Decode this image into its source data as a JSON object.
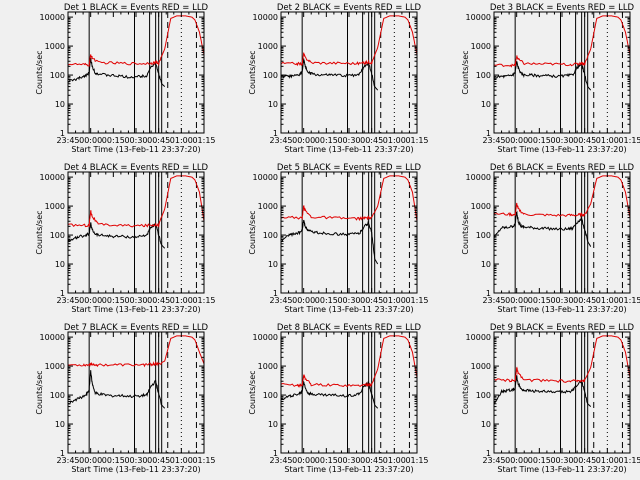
{
  "page": {
    "background": "#f0f0f0",
    "x_tick_labels": [
      "23:45",
      "00:00",
      "00:15",
      "00:30",
      "00:45",
      "01:00",
      "01:15"
    ],
    "y_tick_labels": [
      "1",
      "10",
      "100",
      "1000",
      "10000"
    ],
    "y_axis_label": "Counts/sec",
    "x_axis_label": "Start Time (13-Feb-11 23:37:20)",
    "black_color": "#000000",
    "red_color": "#e00000"
  },
  "chart_data": [
    {
      "type": "line",
      "title": "Det  1 BLACK = Events  RED = LLD",
      "xlabel": "Start Time (13-Feb-11 23:37:20)",
      "ylabel": "Counts/sec",
      "ylim": [
        1,
        15000
      ],
      "y_scale": "log",
      "series": [
        {
          "color": "#000000",
          "x": [
            0,
            5,
            8,
            12,
            14,
            15,
            16,
            18,
            20,
            25,
            30,
            35,
            42,
            48,
            52,
            55,
            58,
            60,
            62,
            64
          ],
          "y": [
            60,
            70,
            80,
            100,
            120,
            380,
            200,
            120,
            110,
            100,
            95,
            90,
            85,
            90,
            95,
            200,
            240,
            110,
            50,
            40
          ]
        },
        {
          "color": "#e00000",
          "x": [
            0,
            10,
            14,
            15,
            16,
            20,
            30,
            40,
            50,
            55,
            58,
            60,
            64,
            68,
            72,
            78,
            82,
            84,
            87,
            90
          ],
          "y": [
            240,
            230,
            220,
            500,
            400,
            270,
            260,
            250,
            250,
            260,
            270,
            250,
            800,
            9000,
            11000,
            11000,
            10000,
            8000,
            3000,
            500
          ]
        }
      ]
    },
    {
      "type": "line",
      "title": "Det  2 BLACK = Events  RED = LLD",
      "xlabel": "Start Time (13-Feb-11 23:37:20)",
      "ylabel": "Counts/sec",
      "ylim": [
        1,
        15000
      ],
      "y_scale": "log",
      "series": [
        {
          "color": "#000000",
          "x": [
            0,
            5,
            8,
            12,
            14,
            15,
            16,
            18,
            20,
            25,
            30,
            35,
            42,
            48,
            52,
            55,
            58,
            60,
            62,
            64
          ],
          "y": [
            90,
            90,
            90,
            100,
            130,
            350,
            200,
            120,
            110,
            100,
            100,
            100,
            95,
            100,
            110,
            200,
            260,
            110,
            40,
            30
          ]
        },
        {
          "color": "#e00000",
          "x": [
            0,
            10,
            14,
            15,
            16,
            20,
            30,
            40,
            50,
            55,
            58,
            60,
            64,
            68,
            72,
            78,
            82,
            84,
            87,
            90
          ],
          "y": [
            250,
            250,
            240,
            550,
            400,
            270,
            260,
            260,
            250,
            260,
            280,
            260,
            900,
            9000,
            11000,
            11000,
            10000,
            8000,
            3000,
            500
          ]
        }
      ]
    },
    {
      "type": "line",
      "title": "Det  3 BLACK = Events  RED = LLD",
      "xlabel": "Start Time (13-Feb-11 23:37:20)",
      "ylabel": "Counts/sec",
      "ylim": [
        1,
        15000
      ],
      "y_scale": "log",
      "series": [
        {
          "color": "#000000",
          "x": [
            0,
            5,
            8,
            12,
            14,
            15,
            16,
            18,
            20,
            25,
            30,
            35,
            42,
            48,
            52,
            55,
            58,
            60,
            62,
            64
          ],
          "y": [
            80,
            90,
            90,
            100,
            120,
            300,
            180,
            110,
            100,
            100,
            95,
            95,
            90,
            95,
            100,
            180,
            240,
            100,
            40,
            30
          ]
        },
        {
          "color": "#e00000",
          "x": [
            0,
            10,
            14,
            15,
            16,
            20,
            30,
            40,
            50,
            55,
            58,
            60,
            64,
            68,
            72,
            78,
            82,
            84,
            87,
            90
          ],
          "y": [
            220,
            220,
            210,
            450,
            350,
            250,
            240,
            240,
            230,
            240,
            260,
            240,
            800,
            9000,
            11000,
            11000,
            10000,
            8000,
            3000,
            500
          ]
        }
      ]
    },
    {
      "type": "line",
      "title": "Det  4 BLACK = Events  RED = LLD",
      "xlabel": "Start Time (13-Feb-11 23:37:20)",
      "ylabel": "Counts/sec",
      "ylim": [
        1,
        15000
      ],
      "y_scale": "log",
      "series": [
        {
          "color": "#000000",
          "x": [
            0,
            5,
            8,
            12,
            14,
            15,
            16,
            18,
            20,
            25,
            30,
            35,
            42,
            48,
            52,
            55,
            58,
            60,
            62,
            64
          ],
          "y": [
            60,
            80,
            90,
            100,
            110,
            250,
            150,
            110,
            100,
            95,
            90,
            90,
            85,
            90,
            100,
            180,
            230,
            100,
            45,
            35
          ]
        },
        {
          "color": "#e00000",
          "x": [
            0,
            10,
            14,
            15,
            16,
            20,
            30,
            40,
            50,
            55,
            58,
            60,
            64,
            68,
            72,
            78,
            82,
            84,
            87,
            90
          ],
          "y": [
            220,
            220,
            210,
            700,
            450,
            230,
            220,
            210,
            210,
            220,
            230,
            220,
            800,
            9000,
            11000,
            11000,
            10000,
            8000,
            3000,
            300
          ]
        }
      ]
    },
    {
      "type": "line",
      "title": "Det  5 BLACK = Events  RED = LLD",
      "xlabel": "Start Time (13-Feb-11 23:37:20)",
      "ylabel": "Counts/sec",
      "ylim": [
        1,
        15000
      ],
      "y_scale": "log",
      "series": [
        {
          "color": "#000000",
          "x": [
            0,
            5,
            8,
            12,
            14,
            15,
            16,
            18,
            20,
            25,
            30,
            35,
            42,
            48,
            52,
            55,
            58,
            60,
            62,
            64
          ],
          "y": [
            60,
            100,
            110,
            120,
            140,
            330,
            200,
            140,
            130,
            120,
            115,
            110,
            105,
            110,
            115,
            200,
            260,
            120,
            15,
            10
          ]
        },
        {
          "color": "#e00000",
          "x": [
            0,
            10,
            14,
            15,
            16,
            20,
            30,
            40,
            50,
            55,
            58,
            60,
            64,
            68,
            72,
            78,
            82,
            84,
            87,
            90
          ],
          "y": [
            420,
            400,
            380,
            1000,
            700,
            420,
            400,
            380,
            370,
            380,
            400,
            380,
            1000,
            9000,
            11000,
            11000,
            10000,
            8000,
            3000,
            300
          ]
        }
      ]
    },
    {
      "type": "line",
      "title": "Det  6 BLACK = Events  RED = LLD",
      "xlabel": "Start Time (13-Feb-11 23:37:20)",
      "ylabel": "Counts/sec",
      "ylim": [
        1,
        15000
      ],
      "y_scale": "log",
      "series": [
        {
          "color": "#000000",
          "x": [
            0,
            5,
            8,
            12,
            14,
            15,
            16,
            18,
            20,
            25,
            30,
            35,
            42,
            48,
            52,
            55,
            58,
            60,
            62,
            64
          ],
          "y": [
            80,
            180,
            180,
            200,
            220,
            650,
            300,
            200,
            190,
            180,
            170,
            170,
            160,
            160,
            170,
            280,
            350,
            160,
            60,
            40
          ]
        },
        {
          "color": "#e00000",
          "x": [
            0,
            10,
            14,
            15,
            16,
            20,
            30,
            40,
            50,
            55,
            58,
            60,
            64,
            68,
            72,
            78,
            82,
            84,
            87,
            90
          ],
          "y": [
            550,
            520,
            500,
            1200,
            800,
            520,
            500,
            480,
            480,
            490,
            510,
            490,
            1200,
            9000,
            11000,
            11000,
            10000,
            8000,
            3000,
            400
          ]
        }
      ]
    },
    {
      "type": "line",
      "title": "Det  7 BLACK = Events  RED = LLD",
      "xlabel": "Start Time (13-Feb-11 23:37:20)",
      "ylabel": "Counts/sec",
      "ylim": [
        1,
        15000
      ],
      "y_scale": "log",
      "series": [
        {
          "color": "#000000",
          "x": [
            0,
            5,
            8,
            12,
            14,
            15,
            16,
            18,
            20,
            25,
            30,
            35,
            42,
            48,
            52,
            55,
            58,
            60,
            62,
            64
          ],
          "y": [
            50,
            70,
            80,
            100,
            150,
            700,
            250,
            120,
            110,
            100,
            95,
            95,
            90,
            95,
            100,
            200,
            300,
            110,
            45,
            35
          ]
        },
        {
          "color": "#e00000",
          "x": [
            0,
            10,
            14,
            15,
            16,
            20,
            30,
            40,
            50,
            55,
            58,
            60,
            64,
            68,
            72,
            78,
            82,
            84,
            87,
            90
          ],
          "y": [
            1100,
            1100,
            1100,
            1200,
            1150,
            1100,
            1100,
            1100,
            1100,
            1150,
            1200,
            1150,
            1500,
            9000,
            11000,
            11000,
            10000,
            8000,
            3000,
            1200
          ]
        }
      ]
    },
    {
      "type": "line",
      "title": "Det  8 BLACK = Events  RED = LLD",
      "xlabel": "Start Time (13-Feb-11 23:37:20)",
      "ylabel": "Counts/sec",
      "ylim": [
        1,
        15000
      ],
      "y_scale": "log",
      "series": [
        {
          "color": "#000000",
          "x": [
            0,
            5,
            8,
            12,
            14,
            15,
            16,
            18,
            20,
            25,
            30,
            35,
            42,
            48,
            52,
            55,
            58,
            60,
            62,
            64
          ],
          "y": [
            70,
            90,
            100,
            110,
            130,
            300,
            180,
            120,
            110,
            105,
            100,
            100,
            95,
            100,
            110,
            200,
            260,
            110,
            45,
            35
          ]
        },
        {
          "color": "#e00000",
          "x": [
            0,
            10,
            14,
            15,
            16,
            20,
            30,
            40,
            50,
            55,
            58,
            60,
            64,
            68,
            72,
            78,
            82,
            84,
            87,
            90
          ],
          "y": [
            230,
            220,
            210,
            500,
            380,
            230,
            220,
            220,
            210,
            220,
            240,
            220,
            800,
            9000,
            11000,
            11000,
            10000,
            8000,
            3000,
            400
          ]
        }
      ]
    },
    {
      "type": "line",
      "title": "Det  9 BLACK = Events  RED = LLD",
      "xlabel": "Start Time (13-Feb-11 23:37:20)",
      "ylabel": "Counts/sec",
      "ylim": [
        1,
        15000
      ],
      "y_scale": "log",
      "series": [
        {
          "color": "#000000",
          "x": [
            0,
            5,
            8,
            12,
            14,
            15,
            16,
            18,
            20,
            25,
            30,
            35,
            42,
            48,
            52,
            55,
            58,
            60,
            62,
            64
          ],
          "y": [
            50,
            130,
            140,
            150,
            170,
            450,
            250,
            160,
            150,
            140,
            135,
            130,
            125,
            130,
            140,
            230,
            300,
            130,
            50,
            40
          ]
        },
        {
          "color": "#e00000",
          "x": [
            0,
            10,
            14,
            15,
            16,
            20,
            30,
            40,
            50,
            55,
            58,
            60,
            64,
            68,
            72,
            78,
            82,
            84,
            87,
            90
          ],
          "y": [
            330,
            320,
            310,
            900,
            550,
            330,
            320,
            310,
            300,
            310,
            330,
            310,
            900,
            9000,
            11000,
            11000,
            10000,
            8000,
            3000,
            400
          ]
        }
      ]
    }
  ]
}
